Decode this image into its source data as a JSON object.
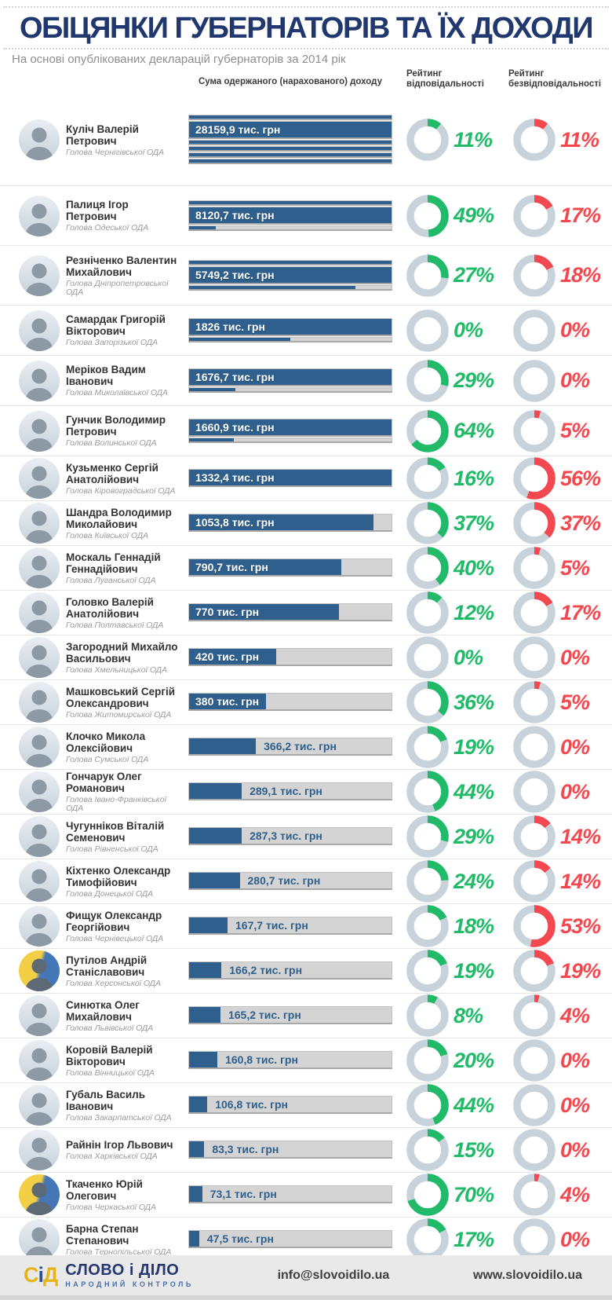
{
  "header": {
    "title": "ОБІЦЯНКИ ГУБЕРНАТОРІВ ТА ЇХ ДОХОДИ",
    "subtitle": "На основі опублікованих декларацій губернаторів за 2014 рік",
    "col_income": "Сума одержаного (нарахованого) доходу",
    "col_resp": "Рейтинг відповідальності",
    "col_irresp": "Рейтинг безвідповідальності"
  },
  "colors": {
    "navy_title": "#21386f",
    "bar_fill": "#2f5f8c",
    "bar_track": "#d4d4d4",
    "donut_base": "#c8d2da",
    "green": "#21ba68",
    "red": "#f3484f"
  },
  "chart_data": {
    "type": "bar",
    "title": "ОБІЦЯНКИ ГУБЕРНАТОРІВ ТА ЇХ ДОХОДИ",
    "subtitle": "На основі опублікованих декларацій губернаторів за 2014 рік",
    "unit": "тис. грн",
    "categories": [
      "Куліч Валерій Петрович",
      "Палиця Ігор Петрович",
      "Резніченко Валентин Михайлович",
      "Самардак Григорій Вікторович",
      "Меріков Вадим Іванович",
      "Гунчик Володимир Петрович",
      "Кузьменко Сергій Анатолійович",
      "Шандра Володимир Миколайович",
      "Москаль Геннадій Геннадійович",
      "Головко Валерій Анатолійович",
      "Загородний Михайло Васильович",
      "Машковський Сергій Олександрович",
      "Клочко Микола Олексійович",
      "Гончарук Олег Романович",
      "Чугунніков Віталій Семенович",
      "Кіхтенко Олександр Тимофійович",
      "Фищук Олександр Георгійович",
      "Путілов Андрій Станіславович",
      "Синютка Олег Михайлович",
      "Коровій Валерій Вікторович",
      "Губаль Василь Іванович",
      "Райнін Ігор Львович",
      "Ткаченко Юрій Олегович",
      "Барна Степан Степанович"
    ],
    "series": [
      {
        "name": "Дохід, тис. грн",
        "values": [
          28159.9,
          8120.7,
          5749.2,
          1826,
          1676.7,
          1660.9,
          1332.4,
          1053.8,
          790.7,
          770,
          420,
          380,
          366.2,
          289.1,
          287.3,
          280.7,
          167.7,
          166.2,
          165.2,
          160.8,
          106.8,
          83.3,
          73.1,
          47.5
        ]
      },
      {
        "name": "Рейтинг відповідальності, %",
        "values": [
          11,
          49,
          27,
          0,
          29,
          64,
          16,
          37,
          40,
          12,
          0,
          36,
          19,
          44,
          29,
          24,
          18,
          19,
          8,
          20,
          44,
          15,
          70,
          17
        ]
      },
      {
        "name": "Рейтинг безвідповідальності, %",
        "values": [
          11,
          17,
          18,
          0,
          0,
          5,
          56,
          37,
          5,
          17,
          0,
          5,
          0,
          0,
          14,
          14,
          53,
          19,
          4,
          0,
          0,
          0,
          4,
          0
        ]
      }
    ]
  },
  "rows": [
    {
      "name": "Куліч Валерій Петрович",
      "position": "Голова Чернігівської ОДА",
      "avatar": "default",
      "bar": {
        "label": "28159,9 тис. грн",
        "lines": [
          1,
          1,
          1,
          1,
          1,
          1
        ],
        "text_line": 1,
        "label_inside": true
      },
      "resp_pct": 11,
      "resp_label": "11%",
      "irresp_pct": 11,
      "irresp_label": "11%"
    },
    {
      "name": "Палиця Ігор Петрович",
      "position": "Голова Одеської ОДА",
      "avatar": "default",
      "bar": {
        "label": "8120,7 тис. грн",
        "lines": [
          1,
          1,
          0.13
        ],
        "text_line": 1,
        "label_inside": true
      },
      "resp_pct": 49,
      "resp_label": "49%",
      "irresp_pct": 17,
      "irresp_label": "17%"
    },
    {
      "name": "Резніченко Валентин Михайлович",
      "position": "Голова Дніпропетровської ОДА",
      "avatar": "default",
      "bar": {
        "label": "5749,2 тис. грн",
        "lines": [
          1,
          1,
          0.82
        ],
        "text_line": 1,
        "label_inside": true
      },
      "resp_pct": 27,
      "resp_label": "27%",
      "irresp_pct": 18,
      "irresp_label": "18%"
    },
    {
      "name": "Самардак Григорій Вікторович",
      "position": "Голова Запорізької ОДА",
      "avatar": "default",
      "bar": {
        "label": "1826 тис. грн",
        "lines": [
          1,
          0.5
        ],
        "text_line": 0,
        "label_inside": true
      },
      "resp_pct": 0,
      "resp_label": "0%",
      "irresp_pct": 0,
      "irresp_label": "0%"
    },
    {
      "name": "Меріков Вадим Іванович",
      "position": "Голова Миколаївської ОДА",
      "avatar": "default",
      "bar": {
        "label": "1676,7 тис. грн",
        "lines": [
          1,
          0.23
        ],
        "text_line": 0,
        "label_inside": true
      },
      "resp_pct": 29,
      "resp_label": "29%",
      "irresp_pct": 0,
      "irresp_label": "0%"
    },
    {
      "name": "Гунчик Володимир Петрович",
      "position": "Голова Волинської ОДА",
      "avatar": "default",
      "bar": {
        "label": "1660,9 тис. грн",
        "lines": [
          1,
          0.22
        ],
        "text_line": 0,
        "label_inside": true
      },
      "resp_pct": 64,
      "resp_label": "64%",
      "irresp_pct": 5,
      "irresp_label": "5%"
    },
    {
      "name": "Кузьменко Сергій Анатолійович",
      "position": "Голова Кіровоградської ОДА",
      "avatar": "default",
      "bar": {
        "label": "1332,4 тис. грн",
        "lines": [
          1
        ],
        "text_line": 0,
        "label_inside": true
      },
      "resp_pct": 16,
      "resp_label": "16%",
      "irresp_pct": 56,
      "irresp_label": "56%"
    },
    {
      "name": "Шандра Володимир Миколайович",
      "position": "Голова Київської ОДА",
      "avatar": "default",
      "bar": {
        "label": "1053,8 тис. грн",
        "lines": [
          0.91
        ],
        "text_line": 0,
        "label_inside": true
      },
      "resp_pct": 37,
      "resp_label": "37%",
      "irresp_pct": 37,
      "irresp_label": "37%"
    },
    {
      "name": "Москаль Геннадій Геннадійович",
      "position": "Голова Луганської ОДА",
      "avatar": "default",
      "bar": {
        "label": "790,7 тис. грн",
        "lines": [
          0.75
        ],
        "text_line": 0,
        "label_inside": true
      },
      "resp_pct": 40,
      "resp_label": "40%",
      "irresp_pct": 5,
      "irresp_label": "5%"
    },
    {
      "name": "Головко Валерій Анатолійович",
      "position": "Голова Полтавської ОДА",
      "avatar": "default",
      "bar": {
        "label": "770 тис. грн",
        "lines": [
          0.74
        ],
        "text_line": 0,
        "label_inside": true
      },
      "resp_pct": 12,
      "resp_label": "12%",
      "irresp_pct": 17,
      "irresp_label": "17%"
    },
    {
      "name": "Загородний Михайло Васильович",
      "position": "Голова Хмельницької ОДА",
      "avatar": "default",
      "bar": {
        "label": "420 тис. грн",
        "lines": [
          0.43
        ],
        "text_line": 0,
        "label_inside": true
      },
      "resp_pct": 0,
      "resp_label": "0%",
      "irresp_pct": 0,
      "irresp_label": "0%"
    },
    {
      "name": "Машковський Сергій Олександрович",
      "position": "Голова Житомирської ОДА",
      "avatar": "default",
      "bar": {
        "label": "380 тис. грн",
        "lines": [
          0.38
        ],
        "text_line": 0,
        "label_inside": true
      },
      "resp_pct": 36,
      "resp_label": "36%",
      "irresp_pct": 5,
      "irresp_label": "5%"
    },
    {
      "name": "Клочко Микола Олексійович",
      "position": "Голова Сумської ОДА",
      "avatar": "default",
      "bar": {
        "label": "366,2 тис. грн",
        "lines": [
          0.33
        ],
        "text_line": 0,
        "label_inside": false
      },
      "resp_pct": 19,
      "resp_label": "19%",
      "irresp_pct": 0,
      "irresp_label": "0%"
    },
    {
      "name": "Гончарук Олег Романович",
      "position": "Голова Івано-Франківської ОДА",
      "avatar": "default",
      "bar": {
        "label": "289,1 тис. грн",
        "lines": [
          0.26
        ],
        "text_line": 0,
        "label_inside": false
      },
      "resp_pct": 44,
      "resp_label": "44%",
      "irresp_pct": 0,
      "irresp_label": "0%"
    },
    {
      "name": "Чугунніков Віталій Семенович",
      "position": "Голова Рівненської ОДА",
      "avatar": "default",
      "bar": {
        "label": "287,3 тис. грн",
        "lines": [
          0.26
        ],
        "text_line": 0,
        "label_inside": false
      },
      "resp_pct": 29,
      "resp_label": "29%",
      "irresp_pct": 14,
      "irresp_label": "14%"
    },
    {
      "name": "Кіхтенко Олександр Тимофійович",
      "position": "Голова Донецької ОДА",
      "avatar": "default",
      "bar": {
        "label": "280,7 тис. грн",
        "lines": [
          0.25
        ],
        "text_line": 0,
        "label_inside": false
      },
      "resp_pct": 24,
      "resp_label": "24%",
      "irresp_pct": 14,
      "irresp_label": "14%"
    },
    {
      "name": "Фищук Олександр Георгійович",
      "position": "Голова Чернівецької ОДА",
      "avatar": "default",
      "bar": {
        "label": "167,7 тис. грн",
        "lines": [
          0.19
        ],
        "text_line": 0,
        "label_inside": false
      },
      "resp_pct": 18,
      "resp_label": "18%",
      "irresp_pct": 53,
      "irresp_label": "53%"
    },
    {
      "name": "Путілов Андрій Станіславович",
      "position": "Голова Херсонської ОДА",
      "avatar": "flag",
      "bar": {
        "label": "166,2 тис. грн",
        "lines": [
          0.16
        ],
        "text_line": 0,
        "label_inside": false
      },
      "resp_pct": 19,
      "resp_label": "19%",
      "irresp_pct": 19,
      "irresp_label": "19%"
    },
    {
      "name": "Синютка Олег Михайлович",
      "position": "Голова Львівської ОДА",
      "avatar": "default",
      "bar": {
        "label": "165,2 тис. грн",
        "lines": [
          0.155
        ],
        "text_line": 0,
        "label_inside": false
      },
      "resp_pct": 8,
      "resp_label": "8%",
      "irresp_pct": 4,
      "irresp_label": "4%"
    },
    {
      "name": "Коровій Валерій Вікторович",
      "position": "Голова Вінницької ОДА",
      "avatar": "default",
      "bar": {
        "label": "160,8 тис. грн",
        "lines": [
          0.14
        ],
        "text_line": 0,
        "label_inside": false
      },
      "resp_pct": 20,
      "resp_label": "20%",
      "irresp_pct": 0,
      "irresp_label": "0%"
    },
    {
      "name": "Губаль Василь Іванович",
      "position": "Голова Закарпатської ОДА",
      "avatar": "default",
      "bar": {
        "label": "106,8 тис. грн",
        "lines": [
          0.09
        ],
        "text_line": 0,
        "label_inside": false
      },
      "resp_pct": 44,
      "resp_label": "44%",
      "irresp_pct": 0,
      "irresp_label": "0%"
    },
    {
      "name": "Райнін Ігор Львович",
      "position": "Голова Харківської ОДА",
      "avatar": "default",
      "bar": {
        "label": "83,3 тис. грн",
        "lines": [
          0.075
        ],
        "text_line": 0,
        "label_inside": false
      },
      "resp_pct": 15,
      "resp_label": "15%",
      "irresp_pct": 0,
      "irresp_label": "0%"
    },
    {
      "name": "Ткаченко Юрій Олегович",
      "position": "Голова Черкаської ОДА",
      "avatar": "flag",
      "bar": {
        "label": "73,1 тис. грн",
        "lines": [
          0.065
        ],
        "text_line": 0,
        "label_inside": false
      },
      "resp_pct": 70,
      "resp_label": "70%",
      "irresp_pct": 4,
      "irresp_label": "4%"
    },
    {
      "name": "Барна Степан Степанович",
      "position": "Голова Тернопільської ОДА",
      "avatar": "default",
      "bar": {
        "label": "47,5 тис. грн",
        "lines": [
          0.05
        ],
        "text_line": 0,
        "label_inside": false
      },
      "resp_pct": 17,
      "resp_label": "17%",
      "irresp_pct": 0,
      "irresp_label": "0%"
    }
  ],
  "footer": {
    "logo_mark": "СіД",
    "logo_main": "СЛОВО і ДІЛО",
    "logo_sub": "НАРОДНИЙ КОНТРОЛЬ",
    "email": "info@slovoidilo.ua",
    "website": "www.slovoidilo.ua"
  }
}
